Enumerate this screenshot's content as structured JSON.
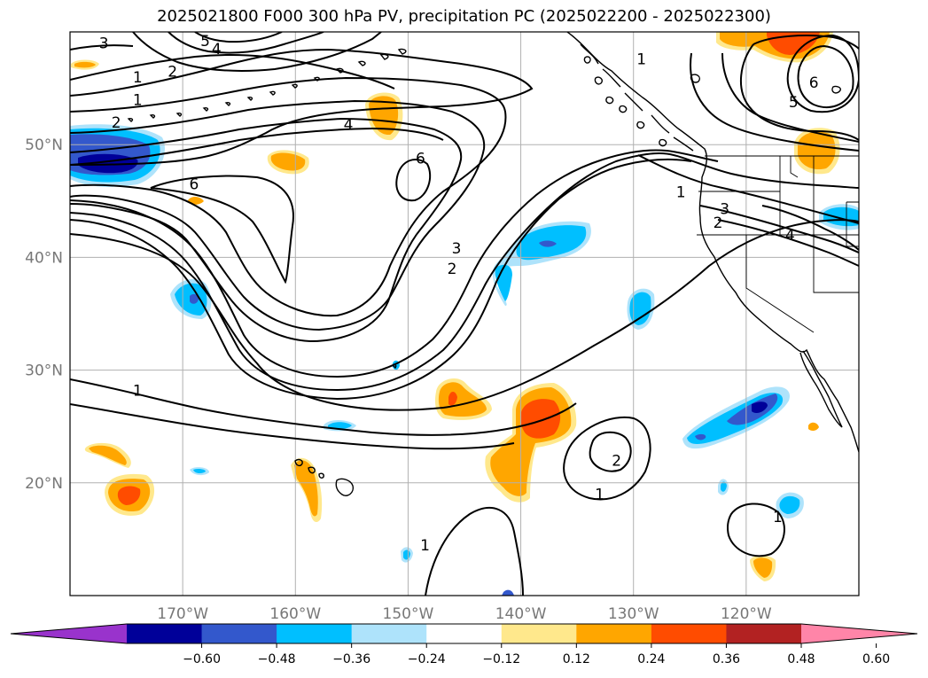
{
  "title": "2025021800 F000 300 hPa PV, precipitation PC (2025022200 - 2025022300)",
  "map": {
    "lon_range": [
      -180,
      -110
    ],
    "lat_range": [
      10,
      60
    ],
    "lon_ticks": [
      {
        "value": -170,
        "label": "170°W"
      },
      {
        "value": -160,
        "label": "160°W"
      },
      {
        "value": -150,
        "label": "150°W"
      },
      {
        "value": -140,
        "label": "140°W"
      },
      {
        "value": -130,
        "label": "130°W"
      },
      {
        "value": -120,
        "label": "120°W"
      }
    ],
    "lat_ticks": [
      {
        "value": 20,
        "label": "20°N"
      },
      {
        "value": 30,
        "label": "30°N"
      },
      {
        "value": 40,
        "label": "40°N"
      },
      {
        "value": 50,
        "label": "50°N"
      }
    ],
    "gridlines": true,
    "contour_labels": [
      {
        "text": "3",
        "lon": -177.0,
        "lat": 59.0
      },
      {
        "text": "5",
        "lon": -168.0,
        "lat": 59.2
      },
      {
        "text": "4",
        "lon": -167.0,
        "lat": 58.5
      },
      {
        "text": "2",
        "lon": -170.9,
        "lat": 56.5
      },
      {
        "text": "1",
        "lon": -174.0,
        "lat": 56.0
      },
      {
        "text": "1",
        "lon": -174.0,
        "lat": 54.0
      },
      {
        "text": "2",
        "lon": -175.9,
        "lat": 52.0
      },
      {
        "text": "4",
        "lon": -155.3,
        "lat": 51.8
      },
      {
        "text": "6",
        "lon": -148.9,
        "lat": 48.8
      },
      {
        "text": "6",
        "lon": -169.0,
        "lat": 46.5
      },
      {
        "text": "3",
        "lon": -145.7,
        "lat": 40.8
      },
      {
        "text": "2",
        "lon": -146.1,
        "lat": 39.0
      },
      {
        "text": "1",
        "lon": -174.0,
        "lat": 28.2
      },
      {
        "text": "2",
        "lon": -131.5,
        "lat": 22.0
      },
      {
        "text": "1",
        "lon": -133.0,
        "lat": 19.0
      },
      {
        "text": "1",
        "lon": -148.5,
        "lat": 14.5
      },
      {
        "text": "1",
        "lon": -125.8,
        "lat": 45.8
      },
      {
        "text": "2",
        "lon": -122.5,
        "lat": 43.1
      },
      {
        "text": "3",
        "lon": -121.9,
        "lat": 44.3
      },
      {
        "text": "4",
        "lon": -116.1,
        "lat": 42.0
      },
      {
        "text": "6",
        "lon": -114.0,
        "lat": 55.5
      },
      {
        "text": "5",
        "lon": -115.8,
        "lat": 53.8
      },
      {
        "text": "1",
        "lon": -117.2,
        "lat": 17.0
      },
      {
        "text": "1",
        "lon": -129.3,
        "lat": 57.6
      }
    ],
    "precip_levels": [
      -0.6,
      -0.48,
      -0.36,
      -0.24,
      -0.12,
      0.12,
      0.24,
      0.36,
      0.48,
      0.6
    ]
  },
  "colorbar": {
    "ticks": [
      "−0.60",
      "−0.48",
      "−0.36",
      "−0.24",
      "−0.12",
      "0.12",
      "0.24",
      "0.36",
      "0.48",
      "0.60"
    ],
    "colors": [
      "#9933cc",
      "#000099",
      "#3358cc",
      "#00bfff",
      "#aee3fb",
      "#ffffff",
      "#ffe88c",
      "#ffa600",
      "#ff4c00",
      "#b22222",
      "#ff85a8"
    ]
  }
}
